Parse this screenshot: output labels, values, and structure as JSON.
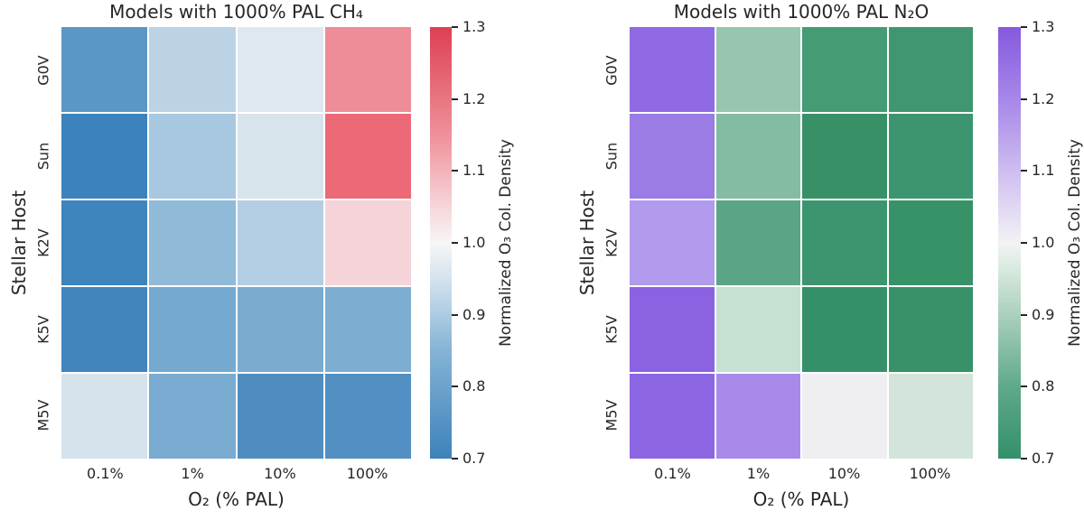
{
  "figure": {
    "background": "#ffffff",
    "text_color": "#262626"
  },
  "chart_data": [
    {
      "type": "heatmap",
      "title": "Models with 1000% PAL CH₄",
      "xlabel": "O₂ (% PAL)",
      "ylabel": "Stellar Host",
      "x_categories": [
        "0.1%",
        "1%",
        "10%",
        "100%"
      ],
      "y_categories": [
        "G0V",
        "Sun",
        "K2V",
        "K5V",
        "M5V"
      ],
      "values": [
        [
          0.78,
          0.91,
          0.97,
          1.17
        ],
        [
          0.71,
          0.89,
          0.95,
          1.21
        ],
        [
          0.71,
          0.86,
          0.9,
          1.05
        ],
        [
          0.72,
          0.83,
          0.84,
          0.84
        ],
        [
          0.95,
          0.84,
          0.76,
          0.77
        ]
      ],
      "cell_colors": [
        [
          "#5b97c6",
          "#bcd3e6",
          "#e0e8ef",
          "#ee8c97"
        ],
        [
          "#3c83bd",
          "#a7c8e0",
          "#d8e4ec",
          "#ec6a77"
        ],
        [
          "#3e84bd",
          "#8fbbd9",
          "#b3cee3",
          "#f5d4d9"
        ],
        [
          "#4285bd",
          "#76a9cf",
          "#79accf",
          "#7daed2"
        ],
        [
          "#d6e3ed",
          "#79abd0",
          "#4f8dc1",
          "#528fc2"
        ]
      ],
      "colorbar": {
        "label": "Normalized O₃ Col. Density",
        "range": [
          0.7,
          1.3
        ],
        "ticks": [
          "0.7",
          "0.8",
          "0.9",
          "1.0",
          "1.1",
          "1.2",
          "1.3"
        ],
        "gradient_stops": [
          {
            "value": 0.7,
            "color": "#3d82bb"
          },
          {
            "value": 0.85,
            "color": "#85b3d6"
          },
          {
            "value": 0.95,
            "color": "#d4e3ee"
          },
          {
            "value": 1.0,
            "color": "#f7f6f6"
          },
          {
            "value": 1.05,
            "color": "#f6d6da"
          },
          {
            "value": 1.15,
            "color": "#ef9099"
          },
          {
            "value": 1.3,
            "color": "#dd4053"
          }
        ]
      }
    },
    {
      "type": "heatmap",
      "title": "Models with 1000% PAL N₂O",
      "xlabel": "O₂ (% PAL)",
      "ylabel": "Stellar Host",
      "x_categories": [
        "0.1%",
        "1%",
        "10%",
        "100%"
      ],
      "y_categories": [
        "G0V",
        "Sun",
        "K2V",
        "K5V",
        "M5V"
      ],
      "values": [
        [
          1.27,
          0.87,
          0.75,
          0.74
        ],
        [
          1.24,
          0.85,
          0.72,
          0.73
        ],
        [
          1.17,
          0.79,
          0.73,
          0.72
        ],
        [
          1.28,
          0.92,
          0.71,
          0.72
        ],
        [
          1.27,
          1.2,
          1.0,
          0.94
        ]
      ],
      "cell_colors": [
        [
          "#8f6ae4",
          "#97c5af",
          "#449b74",
          "#3f9670"
        ],
        [
          "#9a7ce4",
          "#83bca2",
          "#389066",
          "#3d9570"
        ],
        [
          "#b29aec",
          "#5aa585",
          "#3d9570",
          "#389268"
        ],
        [
          "#8a62e2",
          "#c6e0d2",
          "#35906a",
          "#389168"
        ],
        [
          "#8d66e3",
          "#a98ae9",
          "#efeef1",
          "#d3e5da"
        ]
      ],
      "colorbar": {
        "label": "Normalized O₃ Col. Density",
        "range": [
          0.7,
          1.3
        ],
        "ticks": [
          "0.7",
          "0.8",
          "0.9",
          "1.0",
          "1.1",
          "1.2",
          "1.3"
        ],
        "gradient_stops": [
          {
            "value": 0.7,
            "color": "#33906a"
          },
          {
            "value": 0.8,
            "color": "#5fa98a"
          },
          {
            "value": 0.9,
            "color": "#abd0bd"
          },
          {
            "value": 0.97,
            "color": "#ddece2"
          },
          {
            "value": 1.0,
            "color": "#f3f2f5"
          },
          {
            "value": 1.1,
            "color": "#cebdf0"
          },
          {
            "value": 1.2,
            "color": "#a687e9"
          },
          {
            "value": 1.3,
            "color": "#8659dd"
          }
        ]
      }
    }
  ]
}
